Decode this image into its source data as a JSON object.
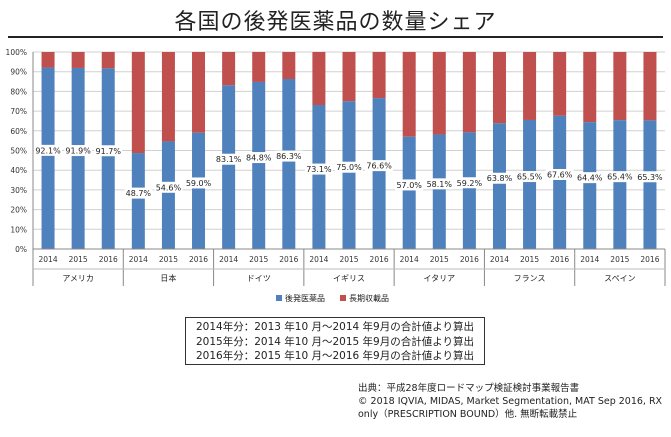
{
  "title": "各国の後発医薬品の数量シェア",
  "chart_data": {
    "type": "bar",
    "stacked": true,
    "ylim": [
      0,
      100
    ],
    "yticks": [
      "0%",
      "10%",
      "20%",
      "30%",
      "40%",
      "50%",
      "60%",
      "70%",
      "80%",
      "90%",
      "100%"
    ],
    "grid": true,
    "legend_position": "bottom",
    "groups": [
      {
        "country": "アメリカ",
        "years": [
          "2014",
          "2015",
          "2016"
        ],
        "values": [
          92.1,
          91.9,
          91.7
        ],
        "labels": [
          "92.1%",
          "91.9%",
          "91.7%"
        ]
      },
      {
        "country": "日本",
        "years": [
          "2014",
          "2015",
          "2016"
        ],
        "values": [
          48.7,
          54.6,
          59.0
        ],
        "labels": [
          "48.7%",
          "54.6%",
          "59.0%"
        ]
      },
      {
        "country": "ドイツ",
        "years": [
          "2014",
          "2015",
          "2016"
        ],
        "values": [
          83.1,
          84.8,
          86.3
        ],
        "labels": [
          "83.1%",
          "84.8%",
          "86.3%"
        ]
      },
      {
        "country": "イギリス",
        "years": [
          "2014",
          "2015",
          "2016"
        ],
        "values": [
          73.1,
          75.0,
          76.6
        ],
        "labels": [
          "73.1%",
          "75.0%",
          "76.6%"
        ]
      },
      {
        "country": "イタリア",
        "years": [
          "2014",
          "2015",
          "2016"
        ],
        "values": [
          57.0,
          58.1,
          59.2
        ],
        "labels": [
          "57.0%",
          "58.1%",
          "59.2%"
        ]
      },
      {
        "country": "フランス",
        "years": [
          "2014",
          "2015",
          "2016"
        ],
        "values": [
          63.8,
          65.5,
          67.6
        ],
        "labels": [
          "63.8%",
          "65.5%",
          "67.6%"
        ]
      },
      {
        "country": "スペイン",
        "years": [
          "2014",
          "2015",
          "2016"
        ],
        "values": [
          64.4,
          65.4,
          65.3
        ],
        "labels": [
          "64.4%",
          "65.4%",
          "65.3%"
        ]
      }
    ],
    "series": [
      {
        "name": "後発医薬品",
        "color": "#4f81bd"
      },
      {
        "name": "長期収載品",
        "color": "#c0504d"
      }
    ]
  },
  "notes": [
    "2014年分：2013 年10 月～2014 年9月の合計値より算出",
    "2015年分：2014 年10 月～2015 年9月の合計値より算出",
    "2016年分：2015 年10 月～2016 年9月の合計値より算出"
  ],
  "source": [
    "出典：平成28年度ロードマップ検証検討事業報告書",
    "© 2018 IQVIA, MIDAS, Market Segmentation, MAT Sep 2016, RX",
    "only（PRESCRIPTION BOUND）他. 無断転載禁止"
  ]
}
